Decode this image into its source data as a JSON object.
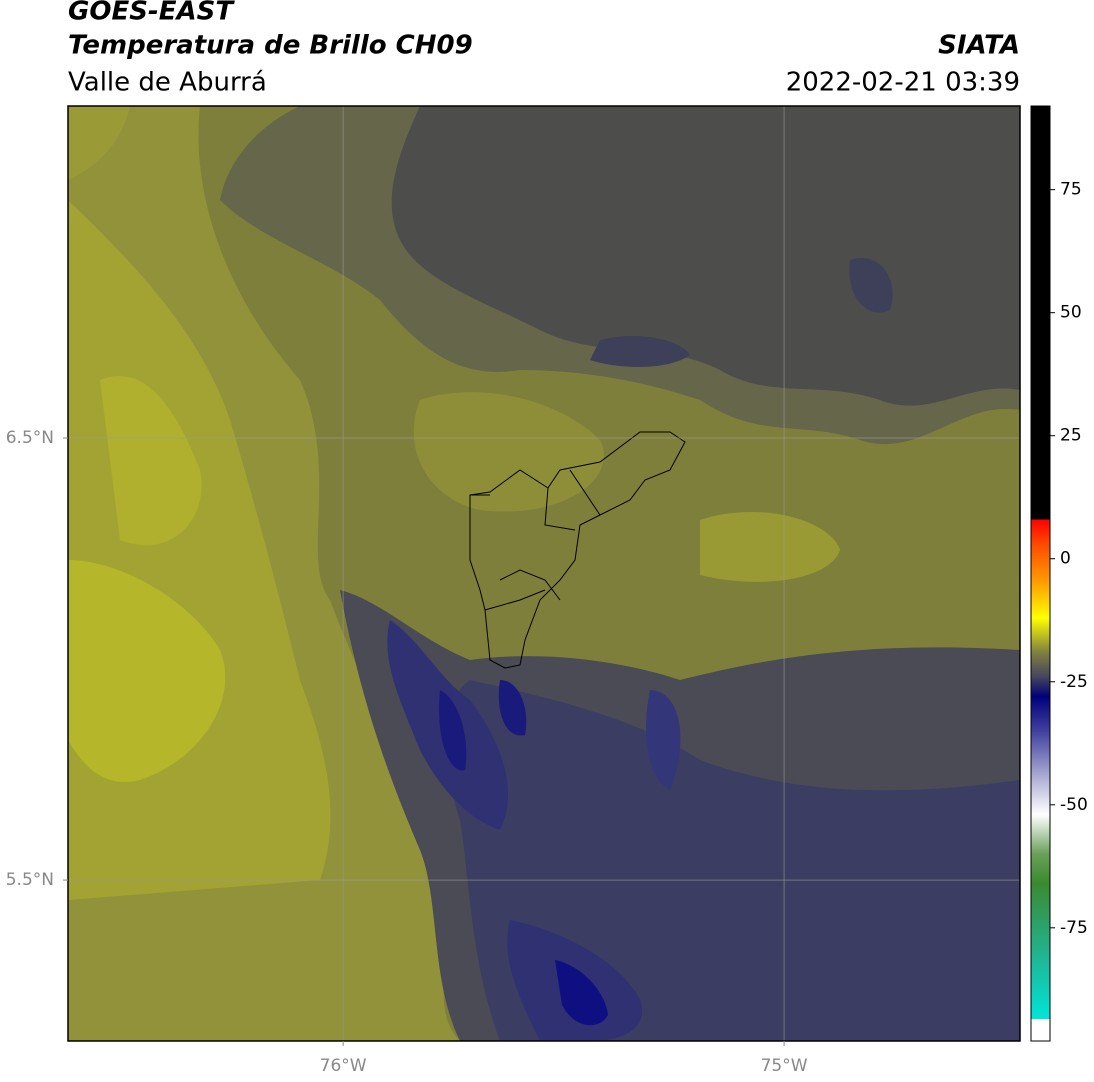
{
  "header": {
    "title": "GOES-EAST",
    "subtitle": "Temperatura de Brillo CH09",
    "region": "Valle de Aburrá",
    "source": "SIATA",
    "timestamp": "2022-02-21 03:39"
  },
  "map": {
    "xlim": [
      -76.624,
      -74.465
    ],
    "ylim": [
      5.136,
      7.251
    ],
    "xticks": [
      {
        "value": -76,
        "label": "76°W"
      },
      {
        "value": -75,
        "label": "75°W"
      }
    ],
    "yticks": [
      {
        "value": 6.5,
        "label": "6.5°N"
      },
      {
        "value": 5.5,
        "label": "5.5°N"
      }
    ],
    "grid": true
  },
  "colorbar": {
    "clim": [
      -98,
      92
    ],
    "ticks": [
      -75,
      -50,
      -25,
      0,
      25,
      50,
      75
    ],
    "colormap": [
      {
        "value": -98,
        "color": "#ffffff"
      },
      {
        "value": -93.5,
        "color": "#ffffff"
      },
      {
        "value": -93.5,
        "color": "#00e5d8"
      },
      {
        "value": -80,
        "color": "#22b28e"
      },
      {
        "value": -66,
        "color": "#3a8a30"
      },
      {
        "value": -60,
        "color": "#6aa05a"
      },
      {
        "value": -52,
        "color": "#ffffff"
      },
      {
        "value": -45,
        "color": "#b4b4d8"
      },
      {
        "value": -35,
        "color": "#4040a0"
      },
      {
        "value": -28,
        "color": "#00007a"
      },
      {
        "value": -24,
        "color": "#45455e"
      },
      {
        "value": -19,
        "color": "#808040"
      },
      {
        "value": -12,
        "color": "#ffff00"
      },
      {
        "value": -5,
        "color": "#ffa000"
      },
      {
        "value": 3,
        "color": "#ff4a00"
      },
      {
        "value": 8,
        "color": "#ff0000"
      },
      {
        "value": 8,
        "color": "#000000"
      },
      {
        "value": 92,
        "color": "#000000"
      }
    ]
  }
}
